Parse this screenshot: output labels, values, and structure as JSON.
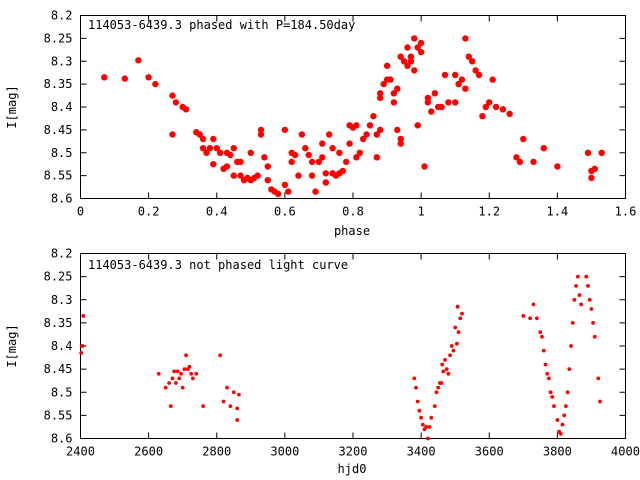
{
  "chart_data": [
    {
      "type": "scatter",
      "title": "114053-6439.3 phased with P=184.50day",
      "xlabel": "phase",
      "ylabel": "I[mag]",
      "xlim": [
        0,
        1.6
      ],
      "ylim": [
        8.6,
        8.2
      ],
      "y_inverted": true,
      "xticks": [
        0,
        0.2,
        0.4,
        0.6,
        0.8,
        1,
        1.2,
        1.4,
        1.6
      ],
      "xtick_labels": [
        "0",
        "0.2",
        "0.4",
        "0.6",
        "0.8",
        "1",
        "1.2",
        "1.4",
        "1.6"
      ],
      "yticks": [
        8.2,
        8.25,
        8.3,
        8.35,
        8.4,
        8.45,
        8.5,
        8.55,
        8.6
      ],
      "ytick_labels": [
        "8.2",
        "8.25",
        "8.3",
        "8.35",
        "8.4",
        "8.45",
        "8.5",
        "8.55",
        "8.6"
      ],
      "marker_color": "#ff0000",
      "points": [
        [
          0.07,
          8.335
        ],
        [
          0.13,
          8.338
        ],
        [
          0.17,
          8.298
        ],
        [
          0.2,
          8.335
        ],
        [
          0.22,
          8.35
        ],
        [
          0.27,
          8.375
        ],
        [
          0.27,
          8.46
        ],
        [
          0.28,
          8.39
        ],
        [
          0.3,
          8.4
        ],
        [
          0.31,
          8.405
        ],
        [
          0.34,
          8.455
        ],
        [
          0.35,
          8.46
        ],
        [
          0.36,
          8.47
        ],
        [
          0.36,
          8.49
        ],
        [
          0.37,
          8.5
        ],
        [
          0.38,
          8.49
        ],
        [
          0.39,
          8.47
        ],
        [
          0.39,
          8.525
        ],
        [
          0.4,
          8.49
        ],
        [
          0.41,
          8.5
        ],
        [
          0.42,
          8.535
        ],
        [
          0.43,
          8.5
        ],
        [
          0.43,
          8.53
        ],
        [
          0.44,
          8.505
        ],
        [
          0.45,
          8.49
        ],
        [
          0.45,
          8.55
        ],
        [
          0.46,
          8.52
        ],
        [
          0.47,
          8.52
        ],
        [
          0.47,
          8.55
        ],
        [
          0.48,
          8.56
        ],
        [
          0.49,
          8.555
        ],
        [
          0.5,
          8.56
        ],
        [
          0.5,
          8.5
        ],
        [
          0.51,
          8.555
        ],
        [
          0.52,
          8.55
        ],
        [
          0.53,
          8.45
        ],
        [
          0.53,
          8.46
        ],
        [
          0.54,
          8.51
        ],
        [
          0.55,
          8.53
        ],
        [
          0.55,
          8.56
        ],
        [
          0.56,
          8.58
        ],
        [
          0.57,
          8.585
        ],
        [
          0.58,
          8.59
        ],
        [
          0.6,
          8.45
        ],
        [
          0.6,
          8.57
        ],
        [
          0.61,
          8.585
        ],
        [
          0.62,
          8.5
        ],
        [
          0.62,
          8.52
        ],
        [
          0.63,
          8.505
        ],
        [
          0.64,
          8.55
        ],
        [
          0.65,
          8.46
        ],
        [
          0.66,
          8.49
        ],
        [
          0.67,
          8.505
        ],
        [
          0.68,
          8.52
        ],
        [
          0.68,
          8.55
        ],
        [
          0.69,
          8.585
        ],
        [
          0.7,
          8.52
        ],
        [
          0.71,
          8.48
        ],
        [
          0.71,
          8.51
        ],
        [
          0.72,
          8.545
        ],
        [
          0.72,
          8.565
        ],
        [
          0.73,
          8.46
        ],
        [
          0.74,
          8.545
        ],
        [
          0.74,
          8.49
        ],
        [
          0.75,
          8.55
        ],
        [
          0.76,
          8.545
        ],
        [
          0.76,
          8.5
        ],
        [
          0.77,
          8.54
        ],
        [
          0.78,
          8.52
        ],
        [
          0.79,
          8.48
        ],
        [
          0.79,
          8.44
        ],
        [
          0.8,
          8.445
        ],
        [
          0.81,
          8.44
        ],
        [
          0.81,
          8.51
        ],
        [
          0.82,
          8.5
        ],
        [
          0.83,
          8.47
        ],
        [
          0.84,
          8.46
        ],
        [
          0.85,
          8.44
        ],
        [
          0.86,
          8.42
        ],
        [
          0.87,
          8.46
        ],
        [
          0.87,
          8.51
        ],
        [
          0.88,
          8.45
        ],
        [
          0.88,
          8.38
        ],
        [
          0.88,
          8.37
        ],
        [
          0.89,
          8.35
        ],
        [
          0.9,
          8.34
        ],
        [
          0.9,
          8.31
        ],
        [
          0.91,
          8.34
        ],
        [
          0.92,
          8.37
        ],
        [
          0.92,
          8.39
        ],
        [
          0.93,
          8.36
        ],
        [
          0.93,
          8.45
        ],
        [
          0.94,
          8.47
        ],
        [
          0.94,
          8.48
        ],
        [
          0.94,
          8.29
        ],
        [
          0.95,
          8.3
        ],
        [
          0.96,
          8.31
        ],
        [
          0.96,
          8.27
        ],
        [
          0.97,
          8.3
        ],
        [
          0.97,
          8.29
        ],
        [
          0.98,
          8.25
        ],
        [
          0.98,
          8.32
        ],
        [
          0.99,
          8.44
        ],
        [
          0.99,
          8.27
        ],
        [
          1,
          8.28
        ],
        [
          1,
          8.26
        ],
        [
          1.01,
          8.53
        ],
        [
          1.02,
          8.39
        ],
        [
          1.02,
          8.38
        ],
        [
          1.03,
          8.41
        ],
        [
          1.04,
          8.37
        ],
        [
          1.05,
          8.4
        ],
        [
          1.06,
          8.4
        ],
        [
          1.07,
          8.33
        ],
        [
          1.08,
          8.39
        ],
        [
          1.1,
          8.33
        ],
        [
          1.1,
          8.39
        ],
        [
          1.11,
          8.35
        ],
        [
          1.12,
          8.34
        ],
        [
          1.13,
          8.25
        ],
        [
          1.13,
          8.36
        ],
        [
          1.14,
          8.29
        ],
        [
          1.15,
          8.3
        ],
        [
          1.16,
          8.32
        ],
        [
          1.17,
          8.33
        ],
        [
          1.18,
          8.42
        ],
        [
          1.19,
          8.4
        ],
        [
          1.2,
          8.39
        ],
        [
          1.21,
          8.34
        ],
        [
          1.22,
          8.4
        ],
        [
          1.24,
          8.405
        ],
        [
          1.26,
          8.415
        ],
        [
          1.28,
          8.51
        ],
        [
          1.29,
          8.52
        ],
        [
          1.3,
          8.47
        ],
        [
          1.33,
          8.52
        ],
        [
          1.36,
          8.49
        ],
        [
          1.4,
          8.53
        ],
        [
          1.49,
          8.5
        ],
        [
          1.5,
          8.54
        ],
        [
          1.51,
          8.535
        ],
        [
          1.53,
          8.5
        ],
        [
          1.5,
          8.555
        ]
      ]
    },
    {
      "type": "scatter",
      "title": "114053-6439.3 not phased light curve",
      "xlabel": "hjd0",
      "ylabel": "I[mag]",
      "xlim": [
        2400,
        4000
      ],
      "ylim": [
        8.6,
        8.2
      ],
      "y_inverted": true,
      "xticks": [
        2400,
        2600,
        2800,
        3000,
        3200,
        3400,
        3600,
        3800,
        4000
      ],
      "xtick_labels": [
        "2400",
        "2600",
        "2800",
        "3000",
        "3200",
        "3400",
        "3600",
        "3800",
        "4000"
      ],
      "yticks": [
        8.2,
        8.25,
        8.3,
        8.35,
        8.4,
        8.45,
        8.5,
        8.55,
        8.6
      ],
      "ytick_labels": [
        "8.2",
        "8.25",
        "8.3",
        "8.35",
        "8.4",
        "8.45",
        "8.5",
        "8.55",
        "8.6"
      ],
      "marker_color": "#ff0000",
      "points": [
        [
          2402,
          8.415
        ],
        [
          2404,
          8.4
        ],
        [
          2406,
          8.4
        ],
        [
          2408,
          8.335
        ],
        [
          2630,
          8.46
        ],
        [
          2650,
          8.49
        ],
        [
          2660,
          8.48
        ],
        [
          2665,
          8.53
        ],
        [
          2670,
          8.47
        ],
        [
          2675,
          8.455
        ],
        [
          2680,
          8.48
        ],
        [
          2685,
          8.455
        ],
        [
          2690,
          8.47
        ],
        [
          2695,
          8.46
        ],
        [
          2700,
          8.49
        ],
        [
          2705,
          8.45
        ],
        [
          2710,
          8.42
        ],
        [
          2715,
          8.45
        ],
        [
          2720,
          8.445
        ],
        [
          2725,
          8.46
        ],
        [
          2730,
          8.47
        ],
        [
          2740,
          8.46
        ],
        [
          2760,
          8.53
        ],
        [
          2810,
          8.42
        ],
        [
          2820,
          8.52
        ],
        [
          2830,
          8.49
        ],
        [
          2840,
          8.53
        ],
        [
          2850,
          8.5
        ],
        [
          2860,
          8.56
        ],
        [
          2860,
          8.535
        ],
        [
          2865,
          8.505
        ],
        [
          3380,
          8.47
        ],
        [
          3385,
          8.49
        ],
        [
          3390,
          8.52
        ],
        [
          3395,
          8.54
        ],
        [
          3400,
          8.555
        ],
        [
          3405,
          8.57
        ],
        [
          3410,
          8.58
        ],
        [
          3415,
          8.575
        ],
        [
          3420,
          8.6
        ],
        [
          3425,
          8.575
        ],
        [
          3430,
          8.555
        ],
        [
          3440,
          8.53
        ],
        [
          3445,
          8.5
        ],
        [
          3450,
          8.49
        ],
        [
          3455,
          8.48
        ],
        [
          3460,
          8.48
        ],
        [
          3462,
          8.44
        ],
        [
          3465,
          8.455
        ],
        [
          3470,
          8.43
        ],
        [
          3475,
          8.45
        ],
        [
          3480,
          8.46
        ],
        [
          3485,
          8.42
        ],
        [
          3490,
          8.4
        ],
        [
          3495,
          8.41
        ],
        [
          3500,
          8.36
        ],
        [
          3505,
          8.395
        ],
        [
          3507,
          8.315
        ],
        [
          3510,
          8.37
        ],
        [
          3515,
          8.34
        ],
        [
          3520,
          8.33
        ],
        [
          3700,
          8.335
        ],
        [
          3720,
          8.34
        ],
        [
          3730,
          8.31
        ],
        [
          3740,
          8.34
        ],
        [
          3750,
          8.37
        ],
        [
          3755,
          8.38
        ],
        [
          3760,
          8.41
        ],
        [
          3765,
          8.44
        ],
        [
          3770,
          8.46
        ],
        [
          3775,
          8.47
        ],
        [
          3780,
          8.5
        ],
        [
          3785,
          8.51
        ],
        [
          3790,
          8.53
        ],
        [
          3800,
          8.56
        ],
        [
          3805,
          8.585
        ],
        [
          3810,
          8.59
        ],
        [
          3815,
          8.57
        ],
        [
          3820,
          8.55
        ],
        [
          3825,
          8.53
        ],
        [
          3830,
          8.5
        ],
        [
          3835,
          8.45
        ],
        [
          3840,
          8.4
        ],
        [
          3845,
          8.35
        ],
        [
          3850,
          8.3
        ],
        [
          3855,
          8.27
        ],
        [
          3860,
          8.25
        ],
        [
          3865,
          8.29
        ],
        [
          3870,
          8.31
        ],
        [
          3885,
          8.25
        ],
        [
          3890,
          8.27
        ],
        [
          3895,
          8.3
        ],
        [
          3900,
          8.32
        ],
        [
          3905,
          8.35
        ],
        [
          3910,
          8.38
        ],
        [
          3920,
          8.47
        ],
        [
          3925,
          8.52
        ]
      ]
    }
  ]
}
